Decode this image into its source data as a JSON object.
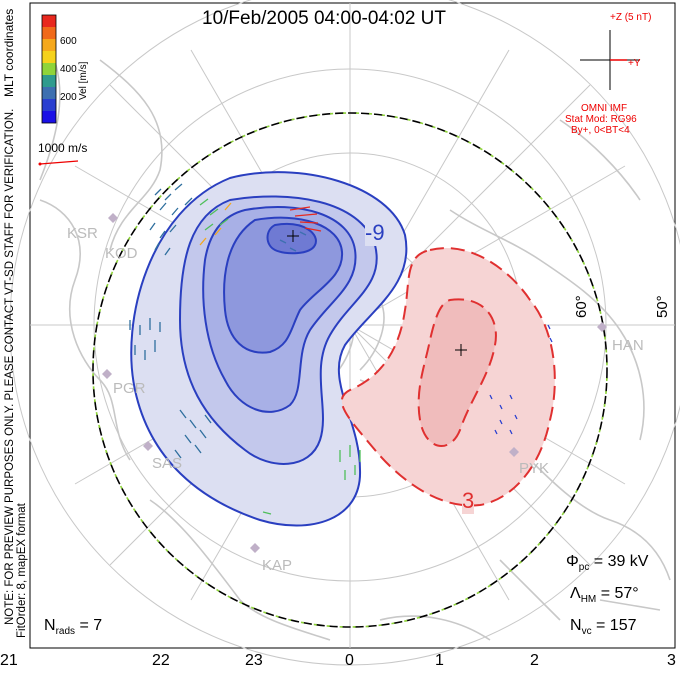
{
  "title": "10/Feb/2005 04:00-04:02 UT",
  "vertical_notes": {
    "mlt": "MLT coordinates",
    "preview": "NOTE: FOR PREVIEW PURPOSES ONLY. PLEASE CONTACT VT-SD STAFF FOR VERIFICATION.",
    "fit": "FitOrder: 8, mapEX format"
  },
  "color_scale": {
    "label": "Vel [m/s]",
    "ticks": [
      "600",
      "400",
      "200"
    ],
    "colors": [
      "#e8281e",
      "#f06a1a",
      "#f5a81c",
      "#8fd43a",
      "#4fbf5a",
      "#2f9b8e",
      "#3d6fb0",
      "#2a3fd0",
      "#1a10e6"
    ]
  },
  "reference_vector": {
    "label": "1000 m/s"
  },
  "imf": {
    "z_label": "+Z (5 nT)",
    "y_label": "+Y",
    "source": "OMNI IMF",
    "model": "Stat Mod: RG96",
    "condition": "By+, 0<BT<4"
  },
  "latitude_labels": [
    "60°",
    "50°"
  ],
  "stations": [
    "KSR",
    "KOD",
    "PGR",
    "SAS",
    "KAP",
    "PYK",
    "HAN"
  ],
  "contour_labels": {
    "negative": "-9",
    "positive": "3"
  },
  "stats": {
    "phi_pc": {
      "symbol": "Φ",
      "sub": "pc",
      "value": " = 39 kV"
    },
    "lambda_hm": {
      "symbol": "Λ",
      "sub": "HM",
      "value": " = 57°"
    },
    "n_vc": {
      "symbol": "N",
      "sub": "vc",
      "value": " = 157"
    },
    "n_rads": {
      "symbol": "N",
      "sub": "rads",
      "value": " = 7"
    }
  },
  "x_axis": {
    "ticks": [
      "21",
      "22",
      "23",
      "0",
      "1",
      "2",
      "3"
    ]
  },
  "colors": {
    "negative_cell": "#2a3fc0",
    "positive_cell": "#e03030",
    "land": "#c8c8c8",
    "boundary": "#8fd43a"
  }
}
